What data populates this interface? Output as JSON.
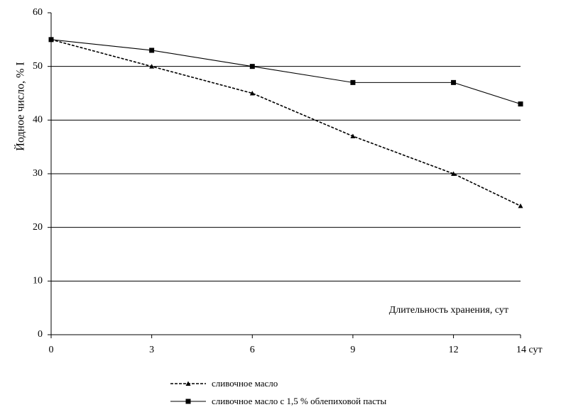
{
  "chart_data": {
    "type": "line",
    "x_label": "Длительность хранения, сут",
    "y_label": "Йодное число, % I",
    "x": [
      0,
      3,
      6,
      9,
      12,
      14
    ],
    "series": [
      {
        "name": "сливочное масло",
        "color": "#000000",
        "dash": true,
        "marker": "triangle",
        "values": [
          55,
          50,
          45,
          37,
          30,
          24
        ]
      },
      {
        "name": "сливочное масло с 1,5 % облепиховой пасты",
        "color": "#000000",
        "dash": false,
        "marker": "square",
        "values": [
          55,
          53,
          50,
          47,
          47,
          43
        ]
      }
    ],
    "xlim": [
      0,
      14
    ],
    "xticks": [
      0,
      3,
      6,
      9,
      12,
      {
        "value": 14,
        "label": "14 сут"
      }
    ],
    "ylim": [
      0,
      60
    ],
    "yticks": [
      0,
      10,
      20,
      30,
      40,
      50,
      60
    ],
    "grid": true,
    "legend": "bottom"
  }
}
